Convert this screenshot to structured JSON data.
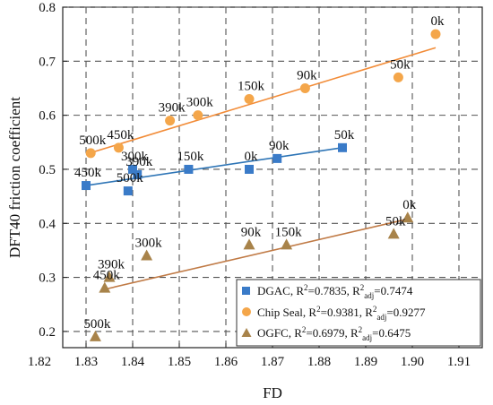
{
  "chart_data": {
    "type": "scatter",
    "title": "",
    "xlabel": "FD",
    "ylabel": "DFT40 friction coefficient",
    "xlim": [
      1.825,
      1.915
    ],
    "ylim": [
      0.17,
      0.8
    ],
    "grid": true,
    "legend_position": "bottom-right",
    "x_ticks": [
      "1.82",
      "1.83",
      "1.84",
      "1.85",
      "1.86",
      "1.87",
      "1.88",
      "1.89",
      "1.90",
      "1.91"
    ],
    "y_ticks": [
      "0.2",
      "0.3",
      "0.4",
      "0.5",
      "0.6",
      "0.7",
      "0.8"
    ],
    "series": [
      {
        "name": "DGAC",
        "legend_text": "DGAC, R²=0.7835, R²adj=0.7474",
        "marker": "square",
        "color": "#3A7BC8",
        "line_color": "#2E75B6",
        "points": [
          {
            "x": 1.83,
            "y": 0.47,
            "label": "450k"
          },
          {
            "x": 1.839,
            "y": 0.46,
            "label": "500k"
          },
          {
            "x": 1.84,
            "y": 0.5,
            "label": "300k"
          },
          {
            "x": 1.841,
            "y": 0.49,
            "label": "390k"
          },
          {
            "x": 1.852,
            "y": 0.5,
            "label": "150k"
          },
          {
            "x": 1.865,
            "y": 0.5,
            "label": "0k"
          },
          {
            "x": 1.871,
            "y": 0.52,
            "label": "90k"
          },
          {
            "x": 1.885,
            "y": 0.54,
            "label": "50k"
          }
        ],
        "fit": {
          "x": [
            1.83,
            1.885
          ],
          "y": [
            0.47,
            0.54
          ]
        }
      },
      {
        "name": "Chip Seal",
        "legend_text": "Chip Seal, R²=0.9381, R²adj=0.9277",
        "marker": "circle",
        "color": "#F4A64A",
        "line_color": "#F28C38",
        "points": [
          {
            "x": 1.831,
            "y": 0.53,
            "label": "500k"
          },
          {
            "x": 1.837,
            "y": 0.54,
            "label": "450k"
          },
          {
            "x": 1.848,
            "y": 0.59,
            "label": "390k"
          },
          {
            "x": 1.854,
            "y": 0.6,
            "label": "300k"
          },
          {
            "x": 1.865,
            "y": 0.63,
            "label": "150k"
          },
          {
            "x": 1.877,
            "y": 0.65,
            "label": "90k"
          },
          {
            "x": 1.897,
            "y": 0.67,
            "label": "50k"
          },
          {
            "x": 1.905,
            "y": 0.75,
            "label": "0k"
          }
        ],
        "fit": {
          "x": [
            1.83,
            1.905
          ],
          "y": [
            0.528,
            0.725
          ]
        }
      },
      {
        "name": "OGFC",
        "legend_text": "OGFC, R²=0.6979, R²adj=0.6475",
        "marker": "triangle",
        "color": "#A8834A",
        "line_color": "#C07A45",
        "points": [
          {
            "x": 1.832,
            "y": 0.19,
            "label": "500k"
          },
          {
            "x": 1.834,
            "y": 0.28,
            "label": "450k"
          },
          {
            "x": 1.835,
            "y": 0.3,
            "label": "390k"
          },
          {
            "x": 1.843,
            "y": 0.34,
            "label": "300k"
          },
          {
            "x": 1.865,
            "y": 0.36,
            "label": "90k"
          },
          {
            "x": 1.873,
            "y": 0.36,
            "label": "150k"
          },
          {
            "x": 1.896,
            "y": 0.38,
            "label": "50k"
          },
          {
            "x": 1.899,
            "y": 0.41,
            "label": "0k"
          }
        ],
        "fit": {
          "x": [
            1.834,
            1.899
          ],
          "y": [
            0.278,
            0.408
          ]
        }
      }
    ]
  },
  "legend": {
    "dgac": {
      "name": "DGAC",
      "r2": "0.7835",
      "r2adj": "0.7474"
    },
    "chip": {
      "name": "Chip Seal",
      "r2": "0.9381",
      "r2adj": "0.9277"
    },
    "ogfc": {
      "name": "OGFC",
      "r2": "0.6979",
      "r2adj": "0.6475"
    }
  }
}
